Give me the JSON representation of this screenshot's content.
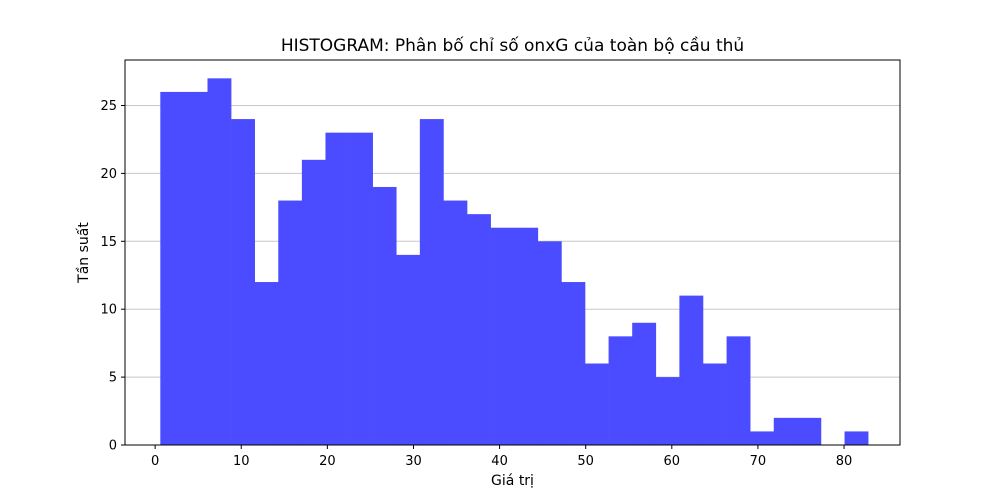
{
  "chart_data": {
    "type": "bar",
    "title": "HISTOGRAM: Phân bố chỉ số onxG của toàn bộ cầu thủ",
    "xlabel": "Giá trị",
    "ylabel": "Tần suất",
    "xlim": [
      -3.5,
      86.5
    ],
    "ylim": [
      0,
      28.35
    ],
    "xticks": [
      0,
      10,
      20,
      30,
      40,
      50,
      60,
      70,
      80
    ],
    "yticks": [
      0,
      5,
      10,
      15,
      20,
      25
    ],
    "grid": "horizontal",
    "bar_color": "#4b4bff",
    "bins": [
      {
        "x0": 0.6,
        "x1": 3.34,
        "count": 26
      },
      {
        "x0": 3.34,
        "x1": 6.08,
        "count": 26
      },
      {
        "x0": 6.08,
        "x1": 8.82,
        "count": 27
      },
      {
        "x0": 8.82,
        "x1": 11.56,
        "count": 24
      },
      {
        "x0": 11.56,
        "x1": 14.3,
        "count": 12
      },
      {
        "x0": 14.3,
        "x1": 17.04,
        "count": 18
      },
      {
        "x0": 17.04,
        "x1": 19.78,
        "count": 21
      },
      {
        "x0": 19.78,
        "x1": 22.52,
        "count": 23
      },
      {
        "x0": 22.52,
        "x1": 25.26,
        "count": 23
      },
      {
        "x0": 25.26,
        "x1": 28.0,
        "count": 19
      },
      {
        "x0": 28.0,
        "x1": 30.74,
        "count": 14
      },
      {
        "x0": 30.74,
        "x1": 33.48,
        "count": 24
      },
      {
        "x0": 33.48,
        "x1": 36.22,
        "count": 18
      },
      {
        "x0": 36.22,
        "x1": 38.96,
        "count": 17
      },
      {
        "x0": 38.96,
        "x1": 41.7,
        "count": 16
      },
      {
        "x0": 41.7,
        "x1": 44.44,
        "count": 16
      },
      {
        "x0": 44.44,
        "x1": 47.18,
        "count": 15
      },
      {
        "x0": 47.18,
        "x1": 49.92,
        "count": 12
      },
      {
        "x0": 49.92,
        "x1": 52.66,
        "count": 6
      },
      {
        "x0": 52.66,
        "x1": 55.4,
        "count": 8
      },
      {
        "x0": 55.4,
        "x1": 58.14,
        "count": 9
      },
      {
        "x0": 58.14,
        "x1": 60.88,
        "count": 5
      },
      {
        "x0": 60.88,
        "x1": 63.62,
        "count": 11
      },
      {
        "x0": 63.62,
        "x1": 66.36,
        "count": 6
      },
      {
        "x0": 66.36,
        "x1": 69.1,
        "count": 8
      },
      {
        "x0": 69.1,
        "x1": 71.84,
        "count": 1
      },
      {
        "x0": 71.84,
        "x1": 74.58,
        "count": 2
      },
      {
        "x0": 74.58,
        "x1": 77.32,
        "count": 2
      },
      {
        "x0": 77.32,
        "x1": 80.06,
        "count": 0
      },
      {
        "x0": 80.06,
        "x1": 82.8,
        "count": 1
      }
    ]
  }
}
